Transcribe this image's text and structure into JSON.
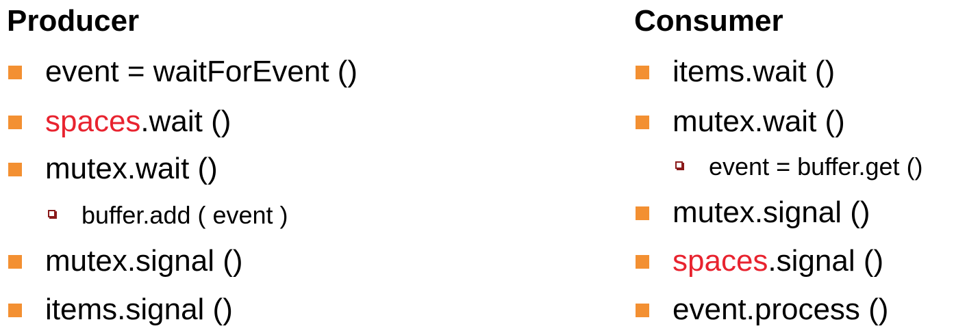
{
  "producer": {
    "title": "Producer",
    "items": [
      {
        "level": 1,
        "highlight": "",
        "text": "event = waitForEvent ()"
      },
      {
        "level": 1,
        "highlight": "spaces",
        "text": ".wait ()"
      },
      {
        "level": 1,
        "highlight": "",
        "text": "mutex.wait ()"
      },
      {
        "level": 2,
        "highlight": "",
        "text": "buffer.add ( event )"
      },
      {
        "level": 1,
        "highlight": "",
        "text": "mutex.signal ()"
      },
      {
        "level": 1,
        "highlight": "",
        "text": "items.signal ()"
      }
    ]
  },
  "consumer": {
    "title": "Consumer",
    "items": [
      {
        "level": 1,
        "highlight": "",
        "text": "items.wait ()"
      },
      {
        "level": 1,
        "highlight": "",
        "text": "mutex.wait ()"
      },
      {
        "level": 2,
        "highlight": "",
        "text": "event = buffer.get ()"
      },
      {
        "level": 1,
        "highlight": "",
        "text": "mutex.signal ()"
      },
      {
        "level": 1,
        "highlight": "spaces",
        "text": ".signal ()"
      },
      {
        "level": 1,
        "highlight": "",
        "text": "event.process ()"
      }
    ]
  },
  "colors": {
    "level1_bullet": "#f39032",
    "level2_bullet": "#8a1a1a",
    "highlight_text": "#e8232f"
  },
  "icons": {
    "level1_bullet": "square-bullet-icon",
    "level2_bullet": "hollow-square-bullet-icon"
  }
}
